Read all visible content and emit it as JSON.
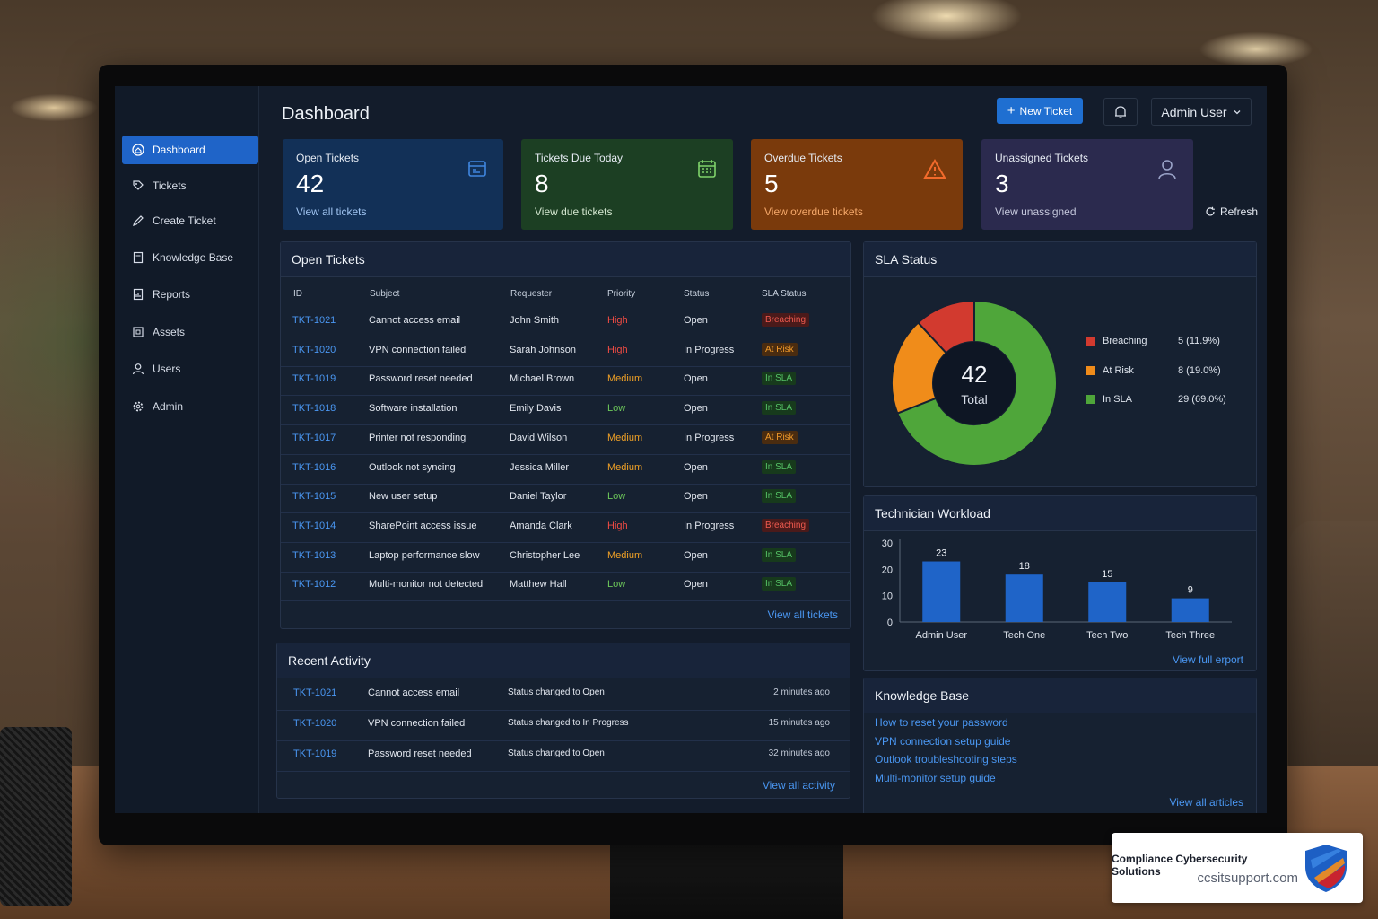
{
  "sidebar": {
    "items": [
      {
        "label": "Dashboard",
        "icon": "home-icon",
        "active": true
      },
      {
        "label": "Tickets",
        "icon": "tag-icon"
      },
      {
        "label": "Create Ticket",
        "icon": "pencil-icon"
      },
      {
        "label": "Knowledge Base",
        "icon": "book-icon"
      },
      {
        "label": "Reports",
        "icon": "report-icon"
      },
      {
        "label": "Assets",
        "icon": "box-icon"
      },
      {
        "label": "Users",
        "icon": "user-icon"
      },
      {
        "label": "Admin",
        "icon": "gear-icon"
      }
    ]
  },
  "header": {
    "title": "Dashboard",
    "new_ticket": "New Ticket",
    "user": "Admin User"
  },
  "cards": [
    {
      "label": "Open Tickets",
      "value": "42",
      "link": "View all tickets",
      "color": "#123057",
      "link_color": "#9fc3f0",
      "icon": "calendar-icon"
    },
    {
      "label": "Tickets Due Today",
      "value": "8",
      "link": "View due tickets",
      "color": "#1c3f23",
      "link_color": "#d3e6cf",
      "icon": "calendar-icon"
    },
    {
      "label": "Overdue Tickets",
      "value": "5",
      "link": "View overdue tickets",
      "color": "#7a3a0c",
      "link_color": "#f5a86a",
      "icon": "warning-icon"
    },
    {
      "label": "Unassigned Tickets",
      "value": "3",
      "link": "View unassigned",
      "color": "#2b2a4e",
      "link_color": "#c5c8dc",
      "icon": "user-icon"
    }
  ],
  "refresh": "Refresh",
  "open_tickets": {
    "title": "Open Tickets",
    "columns": [
      "ID",
      "Subject",
      "Requester",
      "Priority",
      "Status",
      "SLA Status"
    ],
    "rows": [
      {
        "id": "TKT-1021",
        "subject": "Cannot access email",
        "requester": "John Smith",
        "priority": "High",
        "status": "Open",
        "sla": "Breaching"
      },
      {
        "id": "TKT-1020",
        "subject": "VPN connection failed",
        "requester": "Sarah Johnson",
        "priority": "High",
        "status": "In Progress",
        "sla": "At Risk"
      },
      {
        "id": "TKT-1019",
        "subject": "Password reset needed",
        "requester": "Michael Brown",
        "priority": "Medium",
        "status": "Open",
        "sla": "In SLA"
      },
      {
        "id": "TKT-1018",
        "subject": "Software installation",
        "requester": "Emily Davis",
        "priority": "Low",
        "status": "Open",
        "sla": "In SLA"
      },
      {
        "id": "TKT-1017",
        "subject": "Printer not responding",
        "requester": "David Wilson",
        "priority": "Medium",
        "status": "In Progress",
        "sla": "At Risk"
      },
      {
        "id": "TKT-1016",
        "subject": "Outlook not syncing",
        "requester": "Jessica Miller",
        "priority": "Medium",
        "status": "Open",
        "sla": "In SLA"
      },
      {
        "id": "TKT-1015",
        "subject": "New user setup",
        "requester": "Daniel Taylor",
        "priority": "Low",
        "status": "Open",
        "sla": "In SLA"
      },
      {
        "id": "TKT-1014",
        "subject": "SharePoint access issue",
        "requester": "Amanda Clark",
        "priority": "High",
        "status": "In Progress",
        "sla": "Breaching"
      },
      {
        "id": "TKT-1013",
        "subject": "Laptop performance slow",
        "requester": "Christopher Lee",
        "priority": "Medium",
        "status": "Open",
        "sla": "In SLA"
      },
      {
        "id": "TKT-1012",
        "subject": "Multi-monitor not detected",
        "requester": "Matthew Hall",
        "priority": "Low",
        "status": "Open",
        "sla": "In SLA"
      }
    ],
    "footer_link": "View all tickets"
  },
  "recent_activity": {
    "title": "Recent Activity",
    "rows": [
      {
        "id": "TKT-1021",
        "subject": "Cannot access email",
        "action": "Status changed to Open",
        "time": "2 minutes ago"
      },
      {
        "id": "TKT-1020",
        "subject": "VPN connection failed",
        "action": "Status changed to In Progress",
        "time": "15 minutes ago"
      },
      {
        "id": "TKT-1019",
        "subject": "Password reset needed",
        "action": "Status changed to Open",
        "time": "32 minutes ago"
      }
    ],
    "footer_link": "View all activity"
  },
  "sla_status": {
    "title": "SLA Status",
    "total": "42",
    "total_label": "Total",
    "legend": [
      {
        "label": "Breaching",
        "value": "5 (11.9%)",
        "count": 5,
        "color": "#d23a2f"
      },
      {
        "label": "At Risk",
        "value": "8 (19.0%)",
        "count": 8,
        "color": "#f08c1a"
      },
      {
        "label": "In SLA",
        "value": "29 (69.0%)",
        "count": 29,
        "color": "#4fa63a"
      }
    ]
  },
  "chart_data": {
    "type": "bar",
    "title": "Technician Workload",
    "categories": [
      "Admin User",
      "Tech One",
      "Tech Two",
      "Tech Three"
    ],
    "values": [
      23,
      18,
      15,
      9
    ],
    "yticks": [
      "0",
      "10",
      "20",
      "30"
    ],
    "ylim": [
      0,
      30
    ],
    "bar_color": "#1f64c8",
    "grid": false,
    "footer_link": "View full erport"
  },
  "knowledge_base": {
    "title": "Knowledge Base",
    "articles": [
      "How to reset your password",
      "VPN connection setup guide",
      "Outlook troubleshooting steps",
      "Multi-monitor setup guide"
    ],
    "footer_link": "View all articles"
  },
  "brand": {
    "name": "Compliance Cybersecurity Solutions",
    "url": "ccsitsupport.com"
  }
}
